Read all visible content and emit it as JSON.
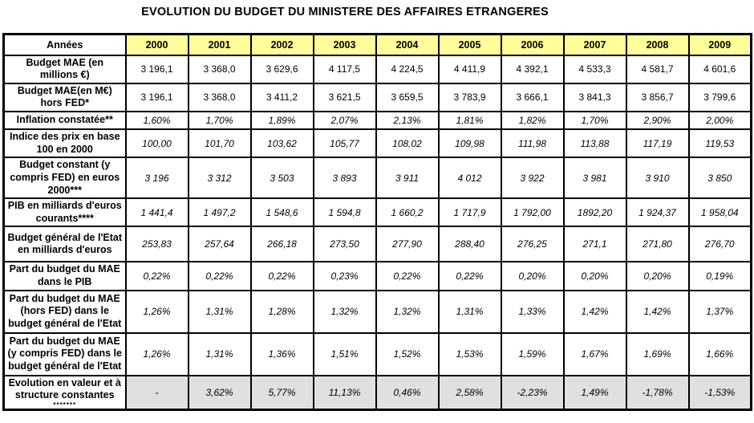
{
  "title": "EVOLUTION DU BUDGET DU MINISTERE DES AFFAIRES ETRANGERES",
  "colors": {
    "header_fill": "#FFFF99",
    "last_row_fill": "#E0E0E0",
    "border": "#000000",
    "text": "#000000"
  },
  "table": {
    "corner_label": "Années",
    "years": [
      "2000",
      "2001",
      "2002",
      "2003",
      "2004",
      "2005",
      "2006",
      "2007",
      "2008",
      "2009"
    ],
    "rows": [
      {
        "label": "Budget MAE (en millions €)",
        "italic": false,
        "fill": "white",
        "values": [
          "3 196,1",
          "3 368,0",
          "3 629,6",
          "4 117,5",
          "4 224,5",
          "4 411,9",
          "4 392,1",
          "4 533,3",
          "4 581,7",
          "4 601,6"
        ]
      },
      {
        "label": "Budget MAE(en M€) hors FED*",
        "italic": false,
        "fill": "white",
        "values": [
          "3 196,1",
          "3 368,0",
          "3 411,2",
          "3 621,5",
          "3 659,5",
          "3 783,9",
          "3 666,1",
          "3 841,3",
          "3 856,7",
          "3 799,6"
        ]
      },
      {
        "label": "Inflation constatée**",
        "italic": true,
        "fill": "white",
        "values": [
          "1,60%",
          "1,70%",
          "1,89%",
          "2,07%",
          "2,13%",
          "1,81%",
          "1,82%",
          "1,70%",
          "2,90%",
          "2,00%"
        ]
      },
      {
        "label": "Indice des prix en base 100 en 2000",
        "italic": true,
        "fill": "white",
        "values": [
          "100,00",
          "101,70",
          "103,62",
          "105,77",
          "108,02",
          "109,98",
          "111,98",
          "113,88",
          "117,19",
          "119,53"
        ]
      },
      {
        "label": "Budget constant (y compris FED) en euros 2000***",
        "italic": true,
        "fill": "white",
        "values": [
          "3 196",
          "3 312",
          "3 503",
          "3 893",
          "3 911",
          "4 012",
          "3 922",
          "3 981",
          "3 910",
          "3 850"
        ]
      },
      {
        "label": "PIB en milliards d'euros courants****",
        "italic": true,
        "fill": "white",
        "values": [
          "1 441,4",
          "1 497,2",
          "1 548,6",
          "1 594,8",
          "1 660,2",
          "1 717,9",
          "1 792,00",
          "1892,20",
          "1 924,37",
          "1 958,04"
        ]
      },
      {
        "label": "Budget général de l'Etat en milliards d'euros",
        "italic": true,
        "fill": "white",
        "values": [
          "253,83",
          "257,64",
          "266,18",
          "273,50",
          "277,90",
          "288,40",
          "276,25",
          "271,1",
          "271,80",
          "276,70"
        ]
      },
      {
        "label": "Part du budget du MAE dans le PIB",
        "italic": true,
        "fill": "white",
        "values": [
          "0,22%",
          "0,22%",
          "0,22%",
          "0,23%",
          "0,22%",
          "0,22%",
          "0,20%",
          "0,20%",
          "0,20%",
          "0,19%"
        ]
      },
      {
        "label": "Part du budget du MAE (hors FED) dans le budget général de l'Etat",
        "italic": true,
        "fill": "white",
        "values": [
          "1,26%",
          "1,31%",
          "1,28%",
          "1,32%",
          "1,32%",
          "1,31%",
          "1,33%",
          "1,42%",
          "1,42%",
          "1,37%"
        ]
      },
      {
        "label": "Part du budget du MAE (y compris FED) dans le budget général de l'Etat",
        "italic": true,
        "fill": "white",
        "values": [
          "1,26%",
          "1,31%",
          "1,36%",
          "1,51%",
          "1,52%",
          "1,53%",
          "1,59%",
          "1,67%",
          "1,69%",
          "1,66%"
        ]
      },
      {
        "label": "Evolution en valeur et à structure constantes",
        "note": "*******",
        "italic": true,
        "fill": "gray",
        "values": [
          "-",
          "3,62%",
          "5,77%",
          "11,13%",
          "0,46%",
          "2,58%",
          "-2,23%",
          "1,49%",
          "-1,78%",
          "-1,53%"
        ]
      }
    ]
  }
}
